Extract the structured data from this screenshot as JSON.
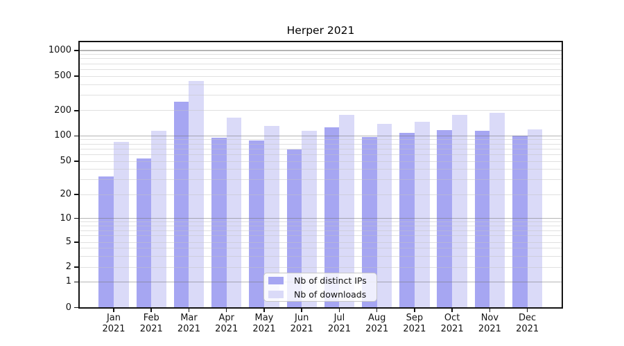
{
  "window": {
    "background": "#ffffff"
  },
  "chart_data": {
    "type": "bar",
    "title": "Herper 2021",
    "categories": [
      "Jan 2021",
      "Feb 2021",
      "Mar 2021",
      "Apr 2021",
      "May 2021",
      "Jun 2021",
      "Jul 2021",
      "Aug 2021",
      "Sep 2021",
      "Oct 2021",
      "Nov 2021",
      "Dec 2021"
    ],
    "series": [
      {
        "name": "Nb of distinct IPs",
        "color": "#a6a6f2",
        "values": [
          33,
          54,
          255,
          95,
          88,
          69,
          126,
          96,
          108,
          117,
          114,
          101
        ]
      },
      {
        "name": "Nb of downloads",
        "color": "#dadaf8",
        "values": [
          85,
          114,
          438,
          165,
          130,
          115,
          178,
          138,
          147,
          178,
          190,
          120
        ]
      }
    ],
    "xlabel": "",
    "ylabel": "",
    "yticks": [
      0,
      1,
      2,
      5,
      10,
      20,
      50,
      100,
      200,
      500,
      1000
    ],
    "yscale": "log-like (linear 0-1, logarithmic above)",
    "ylim": [
      0,
      1250
    ],
    "grid": true,
    "legend_position": "lower-center"
  }
}
